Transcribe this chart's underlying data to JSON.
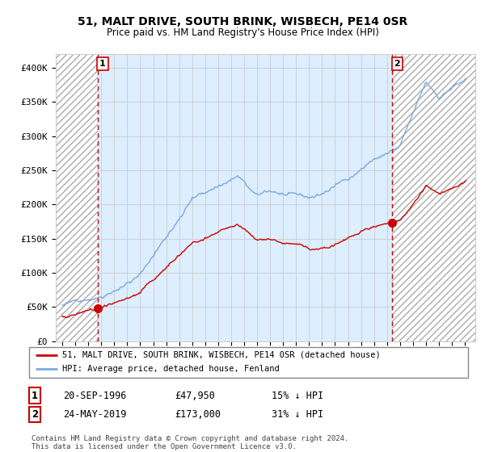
{
  "title": "51, MALT DRIVE, SOUTH BRINK, WISBECH, PE14 0SR",
  "subtitle": "Price paid vs. HM Land Registry's House Price Index (HPI)",
  "ylim": [
    0,
    420000
  ],
  "yticks": [
    0,
    50000,
    100000,
    150000,
    200000,
    250000,
    300000,
    350000,
    400000
  ],
  "ytick_labels": [
    "£0",
    "£50K",
    "£100K",
    "£150K",
    "£200K",
    "£250K",
    "£300K",
    "£350K",
    "£400K"
  ],
  "sale1_date_num": 1996.72,
  "sale1_price": 47950,
  "sale1_label": "1",
  "sale1_date_str": "20-SEP-1996",
  "sale1_price_str": "£47,950",
  "sale1_pct": "15% ↓ HPI",
  "sale2_date_num": 2019.39,
  "sale2_price": 173000,
  "sale2_label": "2",
  "sale2_date_str": "24-MAY-2019",
  "sale2_price_str": "£173,000",
  "sale2_pct": "31% ↓ HPI",
  "hpi_line_color": "#7aaadd",
  "sale_line_color": "#cc0000",
  "dashed_line_color": "#cc0000",
  "marker_color": "#cc0000",
  "grid_color": "#cccccc",
  "legend_label1": "51, MALT DRIVE, SOUTH BRINK, WISBECH, PE14 0SR (detached house)",
  "legend_label2": "HPI: Average price, detached house, Fenland",
  "copyright_text": "Contains HM Land Registry data © Crown copyright and database right 2024.\nThis data is licensed under the Open Government Licence v3.0.",
  "xlim_start": 1993.5,
  "xlim_end": 2025.8,
  "background_color": "#ffffff",
  "plot_bg_color": "#ddeeff"
}
